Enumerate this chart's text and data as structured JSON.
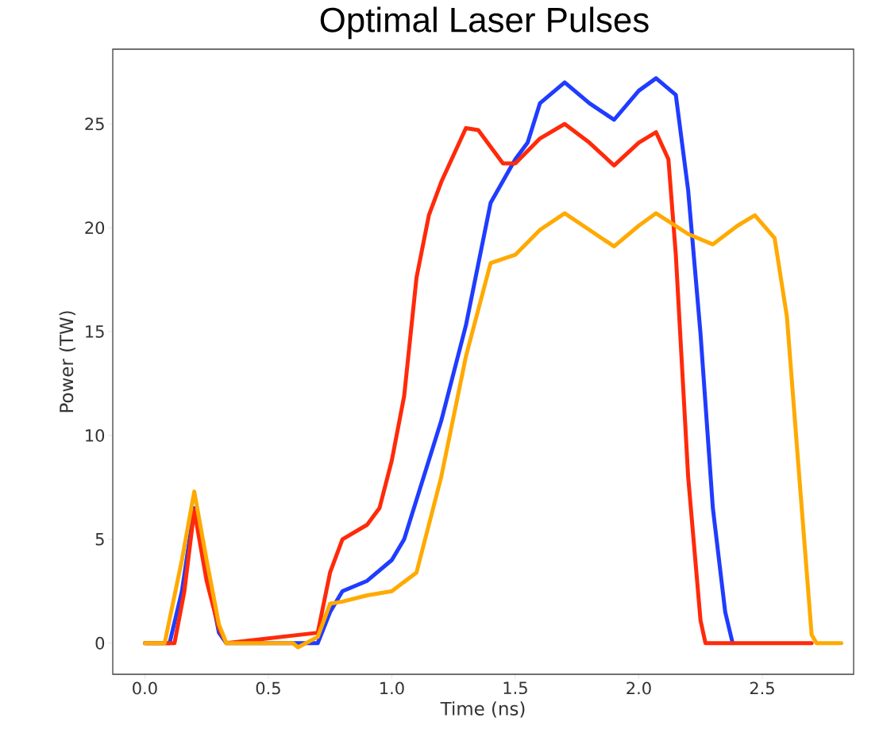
{
  "chart_data": {
    "type": "line",
    "title": "Optimal Laser Pulses",
    "xlabel": "Time (ns)",
    "ylabel": "Power (TW)",
    "xlim": [
      -0.13,
      2.87
    ],
    "ylim": [
      -1.5,
      28.6
    ],
    "xticks": [
      {
        "value": 0,
        "label": "0.0"
      },
      {
        "value": 0.5,
        "label": "0.5"
      },
      {
        "value": 1,
        "label": "1.0"
      },
      {
        "value": 1.5,
        "label": "1.5"
      },
      {
        "value": 2,
        "label": "2.0"
      },
      {
        "value": 2.5,
        "label": "2.5"
      }
    ],
    "yticks": [
      0,
      5,
      10,
      15,
      20,
      25
    ],
    "marker": "none",
    "line_style": "solid",
    "series": [
      {
        "color": "#1f3cff",
        "x": [
          0,
          0.1,
          0.15,
          0.2,
          0.25,
          0.3,
          0.33,
          0.7,
          0.75,
          0.8,
          0.9,
          1.0,
          1.05,
          1.1,
          1.2,
          1.3,
          1.4,
          1.5,
          1.55,
          1.6,
          1.7,
          1.8,
          1.9,
          2.0,
          2.07,
          2.15,
          2.2,
          2.25,
          2.3,
          2.35,
          2.38
        ],
        "values": [
          0,
          0,
          2.5,
          6.5,
          null,
          0.5,
          0,
          0,
          1.5,
          2.5,
          3.0,
          4.0,
          5.0,
          6.9,
          10.7,
          15.3,
          21.2,
          23.3,
          24.1,
          26.0,
          27.0,
          26.0,
          25.2,
          26.6,
          27.2,
          26.4,
          21.8,
          14.9,
          6.5,
          1.5,
          0
        ]
      },
      {
        "color": "#ff2a0a",
        "x": [
          0,
          0.12,
          0.16,
          0.2,
          0.25,
          0.3,
          0.33,
          0.7,
          0.75,
          0.8,
          0.9,
          0.95,
          1.0,
          1.05,
          1.1,
          1.15,
          1.2,
          1.3,
          1.35,
          1.45,
          1.5,
          1.6,
          1.7,
          1.8,
          1.9,
          2.0,
          2.07,
          2.12,
          2.15,
          2.2,
          2.25,
          2.27,
          2.7
        ],
        "values": [
          0,
          0,
          2.5,
          6.4,
          3.0,
          0.7,
          0,
          0.5,
          3.4,
          5.0,
          5.7,
          6.5,
          8.8,
          11.9,
          17.6,
          20.6,
          22.2,
          24.8,
          24.7,
          23.1,
          23.1,
          24.3,
          25.0,
          24.1,
          23.0,
          24.1,
          24.6,
          23.3,
          18.7,
          8.0,
          1.1,
          0,
          0
        ]
      },
      {
        "color": "#ffaa00",
        "x": [
          0,
          0.08,
          0.15,
          0.2,
          0.25,
          0.3,
          0.33,
          0.6,
          0.62,
          0.7,
          0.75,
          0.8,
          0.9,
          1.0,
          1.1,
          1.2,
          1.3,
          1.4,
          1.5,
          1.6,
          1.7,
          1.8,
          1.9,
          2.0,
          2.07,
          2.2,
          2.3,
          2.4,
          2.47,
          2.55,
          2.6,
          2.65,
          2.7,
          2.72,
          2.82
        ],
        "values": [
          0,
          0,
          4.0,
          7.3,
          4.0,
          0.9,
          0,
          0,
          -0.2,
          0.3,
          1.9,
          2.0,
          2.3,
          2.5,
          3.4,
          8.0,
          13.8,
          18.3,
          18.7,
          19.9,
          20.7,
          19.9,
          19.1,
          20.1,
          20.7,
          19.7,
          19.2,
          20.1,
          20.6,
          19.5,
          15.7,
          8.0,
          0.4,
          0,
          0
        ]
      }
    ]
  }
}
